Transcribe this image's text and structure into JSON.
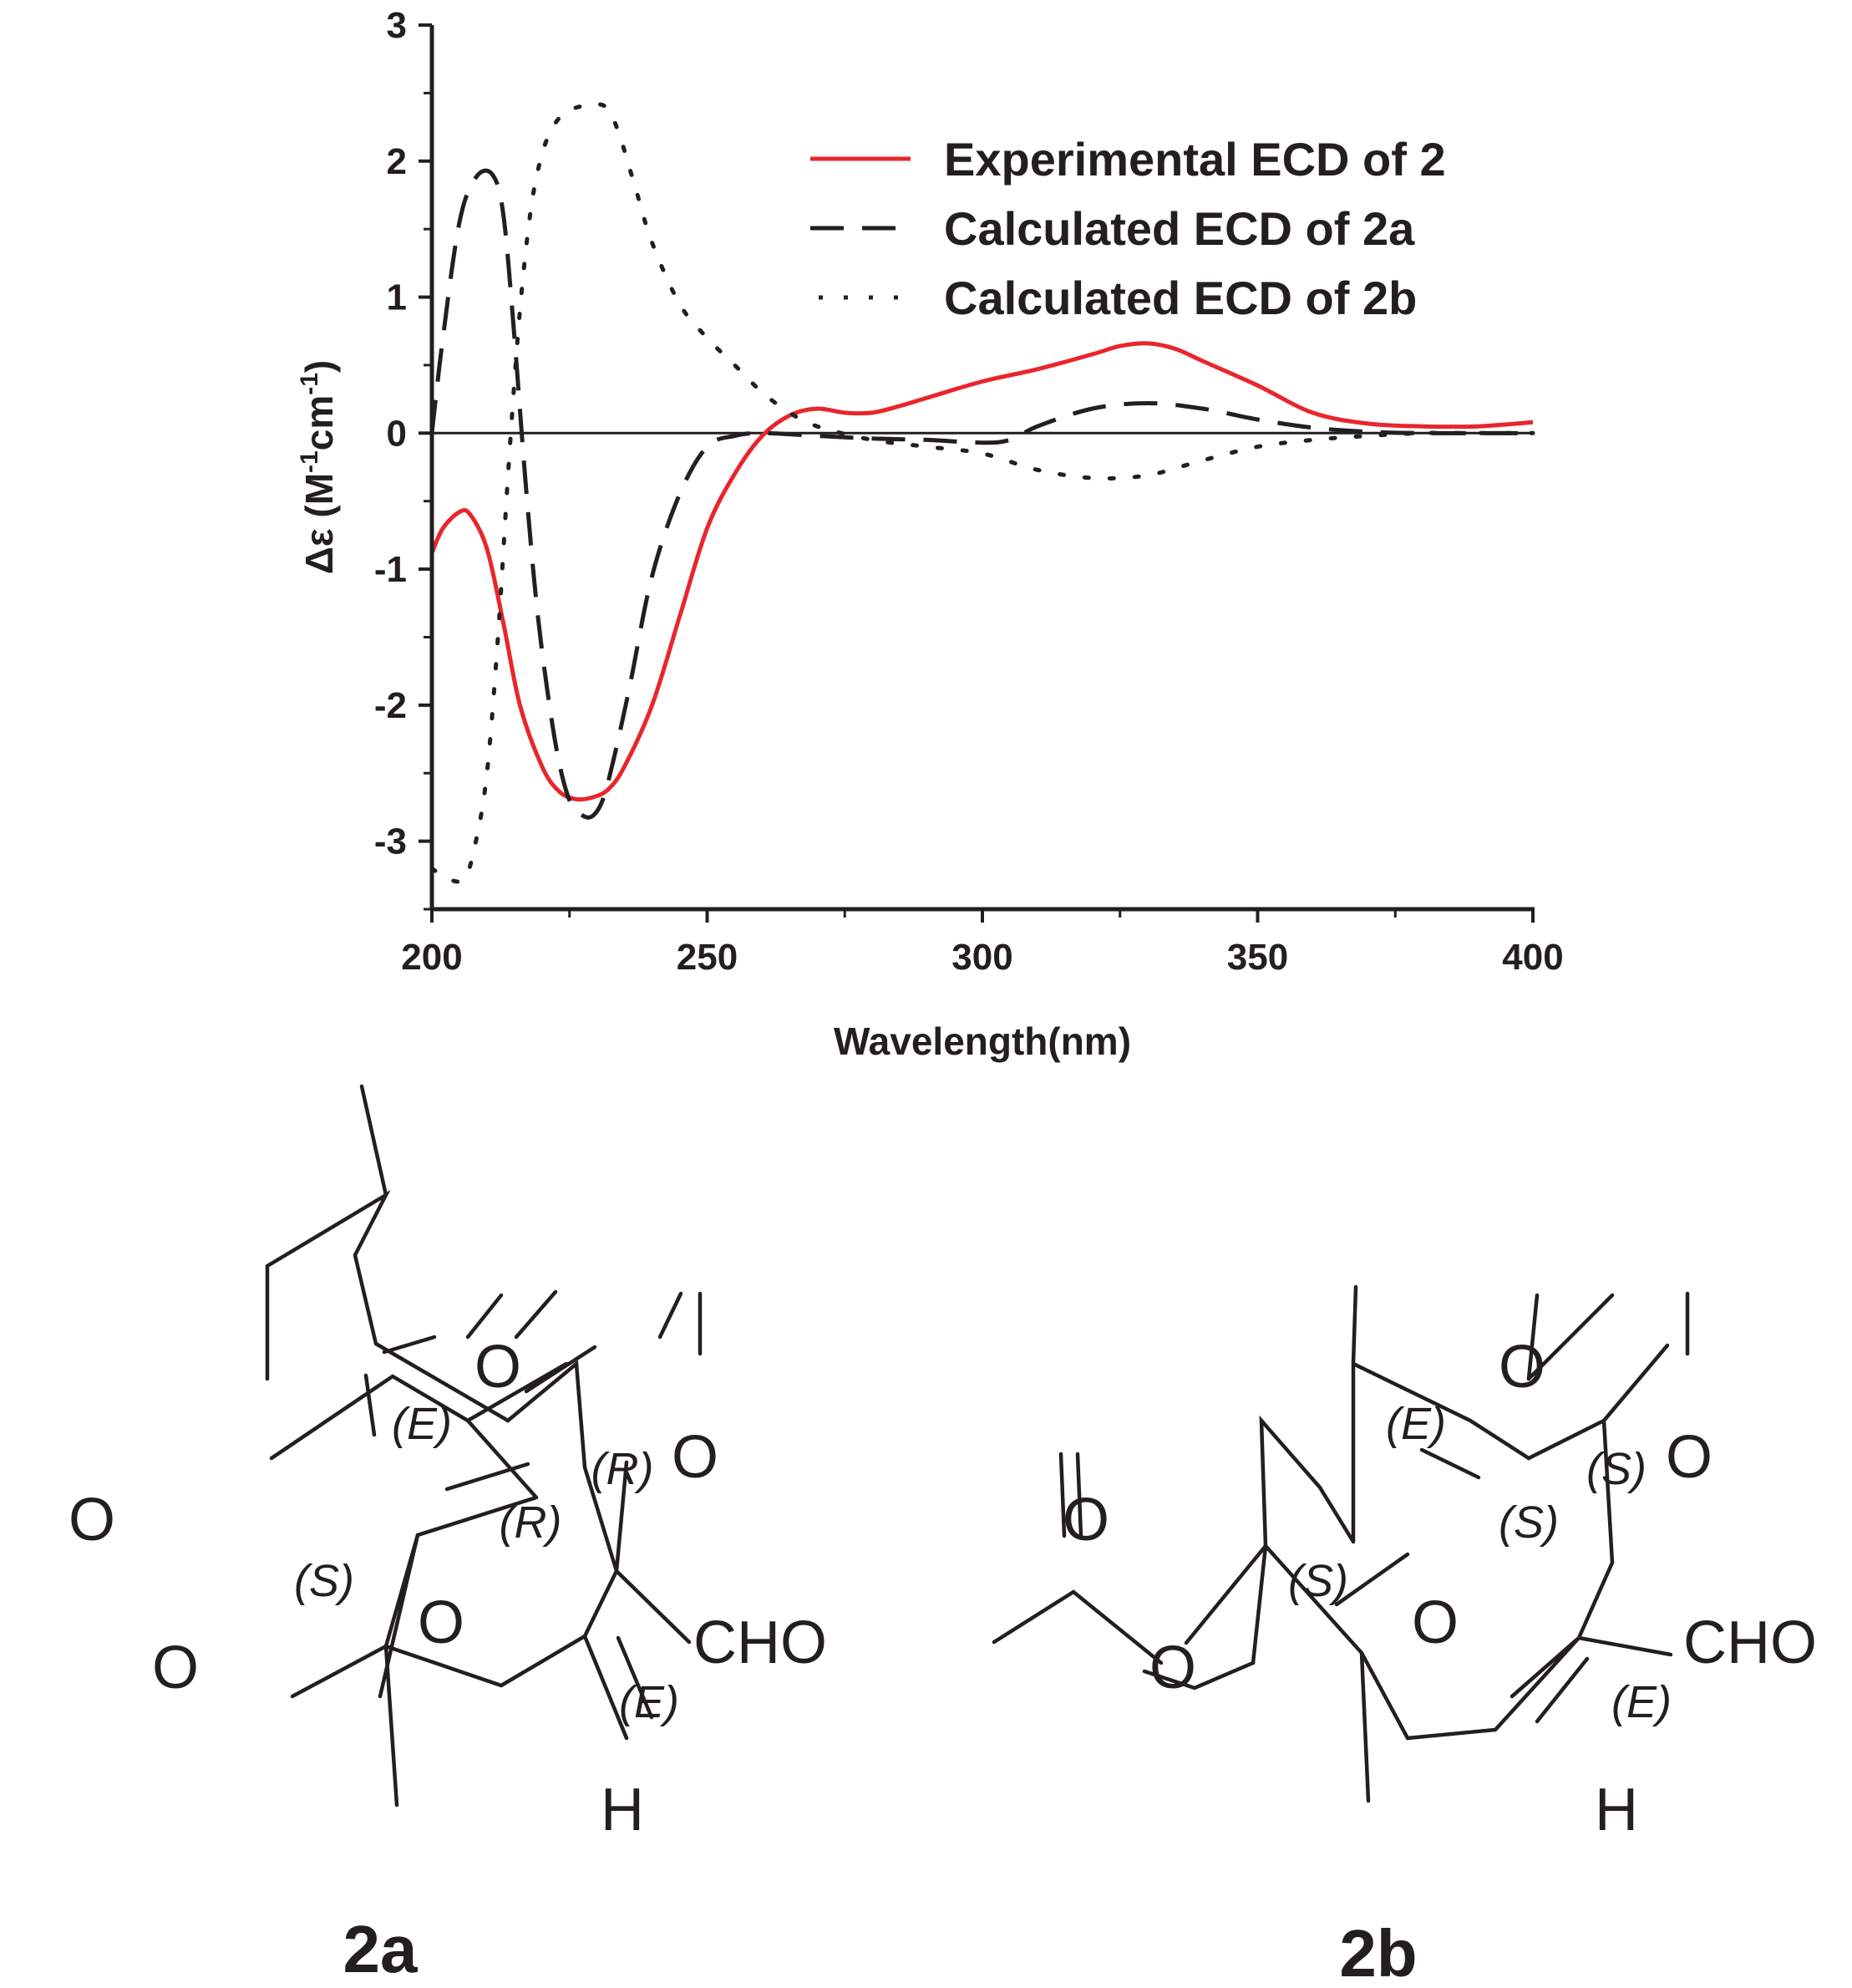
{
  "chart_data": {
    "type": "line",
    "xlabel": "Wavelength(nm)",
    "ylabel_prefix": "Δε (M",
    "ylabel_sup1": "-1",
    "ylabel_mid": "cm",
    "ylabel_sup2": "-1",
    "ylabel_suffix": ")",
    "xlim": [
      200,
      400
    ],
    "ylim": [
      -3.5,
      3
    ],
    "x_ticks": [
      200,
      250,
      300,
      350,
      400
    ],
    "y_ticks": [
      -3,
      -2,
      -1,
      0,
      1,
      2,
      3
    ],
    "legend_position": "top-right",
    "series": [
      {
        "name": "Experimental ECD of 2",
        "color": "#e8262b",
        "style": "solid",
        "x": [
          200,
          202,
          205,
          207,
          210,
          213,
          216,
          220,
          223,
          226,
          229,
          232,
          235,
          240,
          245,
          250,
          255,
          260,
          265,
          270,
          275,
          280,
          285,
          290,
          300,
          310,
          320,
          325,
          330,
          335,
          340,
          350,
          360,
          370,
          380,
          390,
          400
        ],
        "y": [
          -0.88,
          -0.7,
          -0.58,
          -0.6,
          -0.85,
          -1.4,
          -2.0,
          -2.45,
          -2.63,
          -2.69,
          -2.68,
          -2.62,
          -2.45,
          -2.0,
          -1.35,
          -0.7,
          -0.3,
          -0.02,
          0.13,
          0.18,
          0.15,
          0.15,
          0.2,
          0.26,
          0.38,
          0.47,
          0.58,
          0.64,
          0.66,
          0.62,
          0.53,
          0.35,
          0.15,
          0.07,
          0.05,
          0.05,
          0.08
        ]
      },
      {
        "name": "Calculated ECD of 2a",
        "color": "#231f20",
        "style": "dashed",
        "x": [
          200,
          202,
          205,
          208,
          211,
          213,
          215,
          217,
          219,
          221,
          223,
          225,
          227,
          229,
          231,
          233,
          236,
          240,
          245,
          250,
          255,
          260,
          270,
          280,
          290,
          300,
          305,
          310,
          320,
          330,
          340,
          350,
          360,
          370,
          380,
          400
        ],
        "y": [
          0.0,
          0.7,
          1.55,
          1.88,
          1.9,
          1.6,
          0.7,
          -0.35,
          -1.25,
          -1.9,
          -2.4,
          -2.7,
          -2.8,
          -2.82,
          -2.7,
          -2.4,
          -1.85,
          -1.05,
          -0.45,
          -0.1,
          -0.02,
          0.0,
          -0.02,
          -0.04,
          -0.05,
          -0.07,
          -0.05,
          0.05,
          0.18,
          0.22,
          0.18,
          0.1,
          0.04,
          0.01,
          0.0,
          0.0
        ]
      },
      {
        "name": "Calculated ECD of 2b",
        "color": "#231f20",
        "style": "dotted",
        "x": [
          200,
          203,
          206,
          208,
          210,
          212,
          214,
          216,
          218,
          220,
          222,
          224,
          226,
          228,
          230,
          232,
          234,
          237,
          240,
          245,
          250,
          255,
          260,
          265,
          270,
          280,
          290,
          300,
          310,
          320,
          330,
          340,
          350,
          360,
          370,
          380,
          390,
          400
        ],
        "y": [
          -3.2,
          -3.28,
          -3.27,
          -3.0,
          -2.5,
          -1.5,
          -0.2,
          0.9,
          1.65,
          2.05,
          2.25,
          2.35,
          2.39,
          2.41,
          2.42,
          2.38,
          2.2,
          1.8,
          1.4,
          0.95,
          0.7,
          0.5,
          0.3,
          0.15,
          0.05,
          -0.05,
          -0.1,
          -0.15,
          -0.27,
          -0.33,
          -0.31,
          -0.2,
          -0.1,
          -0.05,
          -0.02,
          0.0,
          0.0,
          0.0
        ]
      }
    ]
  },
  "molecules": [
    {
      "label": "2a",
      "atoms": {
        "O_top": "O",
        "O_right": "O",
        "O_ketone": "O",
        "O_ester_carbonyl": "O",
        "O_ester": "O",
        "CHO": "CHO",
        "H": "H"
      },
      "stereo": {
        "alkene_top": "(E)",
        "center_top": "(R)",
        "center_right": "(R)",
        "center_left": "(S)",
        "alkene_bottom": "(E)"
      }
    },
    {
      "label": "2b",
      "atoms": {
        "O_top": "O",
        "O_right": "O",
        "O_ketone": "O",
        "O_ester_carbonyl": "O",
        "O_ester": "O",
        "CHO": "CHO",
        "H": "H"
      },
      "stereo": {
        "alkene_top": "(E)",
        "center_top": "(S)",
        "center_right": "(S)",
        "center_left": "(S)",
        "alkene_bottom": "(E)"
      }
    }
  ]
}
